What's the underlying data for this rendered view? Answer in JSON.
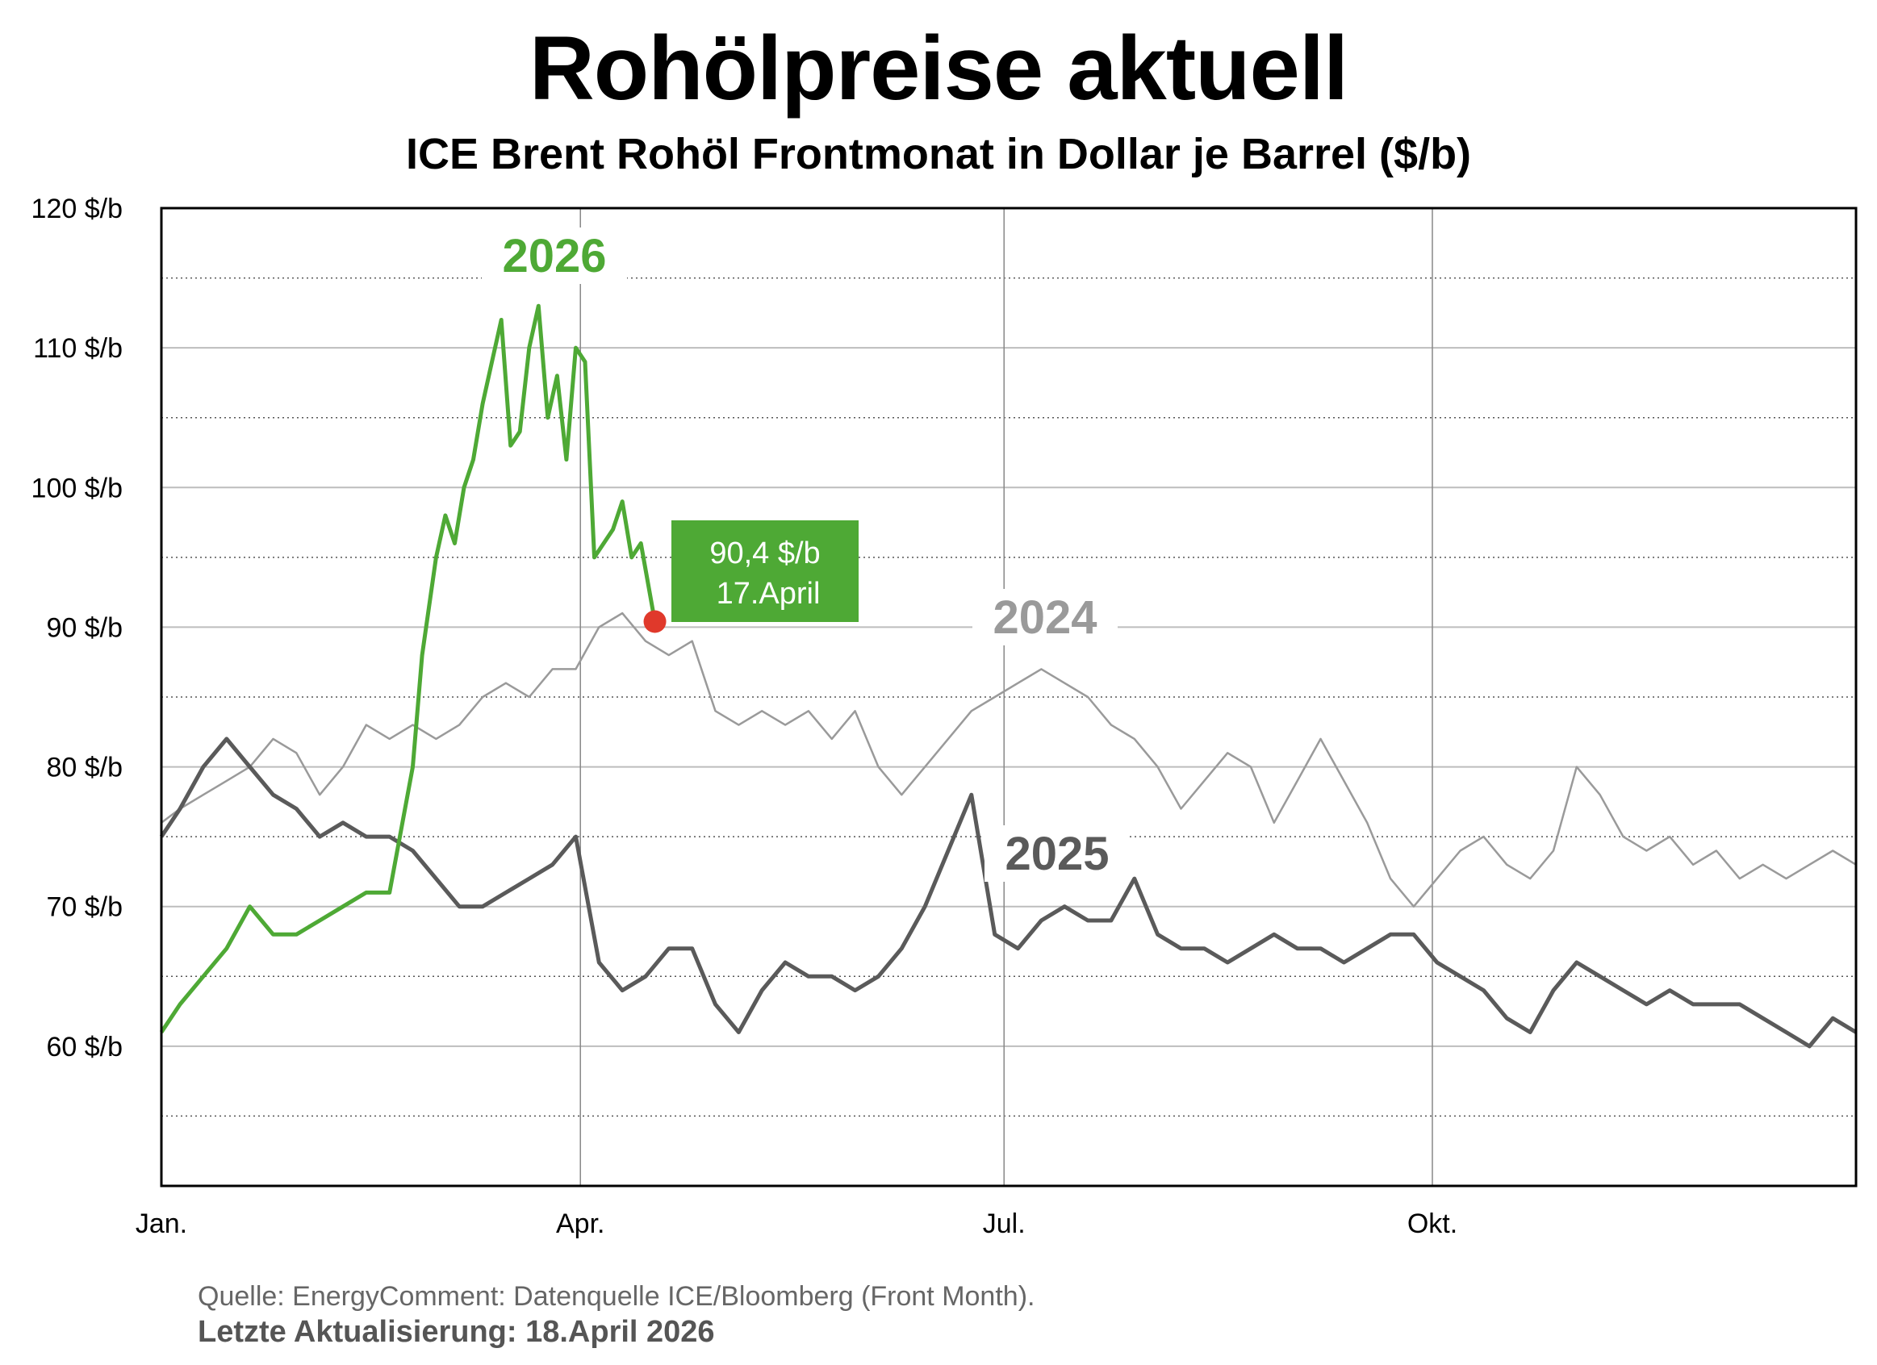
{
  "title": "Rohölpreise aktuell",
  "subtitle": "ICE Brent Rohöl Frontmonat in Dollar je Barrel ($/b)",
  "source": "Quelle: EnergyComment: Datenquelle ICE/Bloomberg (Front Month).",
  "updated": "Letzte Aktualisierung: 18.April 2026",
  "colors": {
    "2026": "#4ea935",
    "2025": "#5a5a5a",
    "2024": "#9a9a9a",
    "marker": "#e0392b"
  },
  "chart_data": {
    "type": "line",
    "title": "Rohölpreise aktuell",
    "subtitle": "ICE Brent Rohöl Frontmonat in Dollar je Barrel ($/b)",
    "xlabel": "",
    "ylabel": "",
    "x_unit": "day of year",
    "xlim": [
      1,
      365
    ],
    "ylim": [
      50,
      120
    ],
    "x_ticks": [
      {
        "label": "Jan.",
        "day": 1
      },
      {
        "label": "Apr.",
        "day": 91
      },
      {
        "label": "Jul.",
        "day": 182
      },
      {
        "label": "Okt.",
        "day": 274
      }
    ],
    "y_ticks": [
      {
        "label": "60 $/b",
        "value": 60
      },
      {
        "label": "70 $/b",
        "value": 70
      },
      {
        "label": "80 $/b",
        "value": 80
      },
      {
        "label": "90 $/b",
        "value": 90
      },
      {
        "label": "100 $/b",
        "value": 100
      },
      {
        "label": "110 $/b",
        "value": 110
      },
      {
        "label": "120 $/b",
        "value": 120
      }
    ],
    "grid": true,
    "series": [
      {
        "name": "2024",
        "x": [
          1,
          5,
          10,
          15,
          20,
          25,
          30,
          35,
          40,
          45,
          50,
          55,
          60,
          65,
          70,
          75,
          80,
          85,
          90,
          95,
          100,
          105,
          110,
          115,
          120,
          125,
          130,
          135,
          140,
          145,
          150,
          155,
          160,
          165,
          170,
          175,
          180,
          185,
          190,
          195,
          200,
          205,
          210,
          215,
          220,
          225,
          230,
          235,
          240,
          245,
          250,
          255,
          260,
          265,
          270,
          275,
          280,
          285,
          290,
          295,
          300,
          305,
          310,
          315,
          320,
          325,
          330,
          335,
          340,
          345,
          350,
          355,
          360,
          365
        ],
        "values": [
          76,
          77,
          78,
          79,
          80,
          82,
          81,
          78,
          80,
          83,
          82,
          83,
          82,
          83,
          85,
          86,
          85,
          87,
          87,
          90,
          91,
          89,
          88,
          89,
          84,
          83,
          84,
          83,
          84,
          82,
          84,
          80,
          78,
          80,
          82,
          84,
          85,
          86,
          87,
          86,
          85,
          83,
          82,
          80,
          77,
          79,
          81,
          80,
          76,
          79,
          82,
          79,
          76,
          72,
          70,
          72,
          74,
          75,
          73,
          72,
          74,
          80,
          78,
          75,
          74,
          75,
          73,
          74,
          72,
          73,
          72,
          73,
          74,
          73
        ]
      },
      {
        "name": "2025",
        "x": [
          1,
          5,
          10,
          15,
          20,
          25,
          30,
          35,
          40,
          45,
          50,
          55,
          60,
          65,
          70,
          75,
          80,
          85,
          90,
          95,
          100,
          105,
          110,
          115,
          120,
          125,
          130,
          135,
          140,
          145,
          150,
          155,
          160,
          165,
          170,
          175,
          180,
          185,
          190,
          195,
          200,
          205,
          210,
          215,
          220,
          225,
          230,
          235,
          240,
          245,
          250,
          255,
          260,
          265,
          270,
          275,
          280,
          285,
          290,
          295,
          300,
          305,
          310,
          315,
          320,
          325,
          330,
          335,
          340,
          345,
          350,
          355,
          360,
          365
        ],
        "values": [
          75,
          77,
          80,
          82,
          80,
          78,
          77,
          75,
          76,
          75,
          75,
          74,
          72,
          70,
          70,
          71,
          72,
          73,
          75,
          66,
          64,
          65,
          67,
          67,
          63,
          61,
          64,
          66,
          65,
          65,
          64,
          65,
          67,
          70,
          74,
          78,
          68,
          67,
          69,
          70,
          69,
          69,
          72,
          68,
          67,
          67,
          66,
          67,
          68,
          67,
          67,
          66,
          67,
          68,
          68,
          66,
          65,
          64,
          62,
          61,
          64,
          66,
          65,
          64,
          63,
          64,
          63,
          63,
          63,
          62,
          61,
          60,
          62,
          61
        ]
      },
      {
        "name": "2026",
        "x": [
          1,
          5,
          10,
          15,
          20,
          25,
          30,
          35,
          40,
          45,
          50,
          55,
          57,
          60,
          62,
          64,
          66,
          68,
          70,
          72,
          74,
          76,
          78,
          80,
          82,
          84,
          86,
          88,
          90,
          92,
          94,
          96,
          98,
          100,
          102,
          104,
          107
        ],
        "values": [
          61,
          63,
          65,
          67,
          70,
          68,
          68,
          69,
          70,
          71,
          71,
          80,
          88,
          95,
          98,
          96,
          100,
          102,
          106,
          109,
          112,
          103,
          104,
          110,
          113,
          105,
          108,
          102,
          110,
          109,
          95,
          96,
          97,
          99,
          95,
          96,
          90.4
        ]
      }
    ],
    "annotations": [
      {
        "text": "2026",
        "series": "2026"
      },
      {
        "text": "2024",
        "series": "2024"
      },
      {
        "text": "2025",
        "series": "2025"
      },
      {
        "text": "90,4 $/b",
        "x": 107,
        "y": 90.4
      },
      {
        "text": "17.April",
        "x": 107,
        "y": 90.4
      }
    ]
  }
}
